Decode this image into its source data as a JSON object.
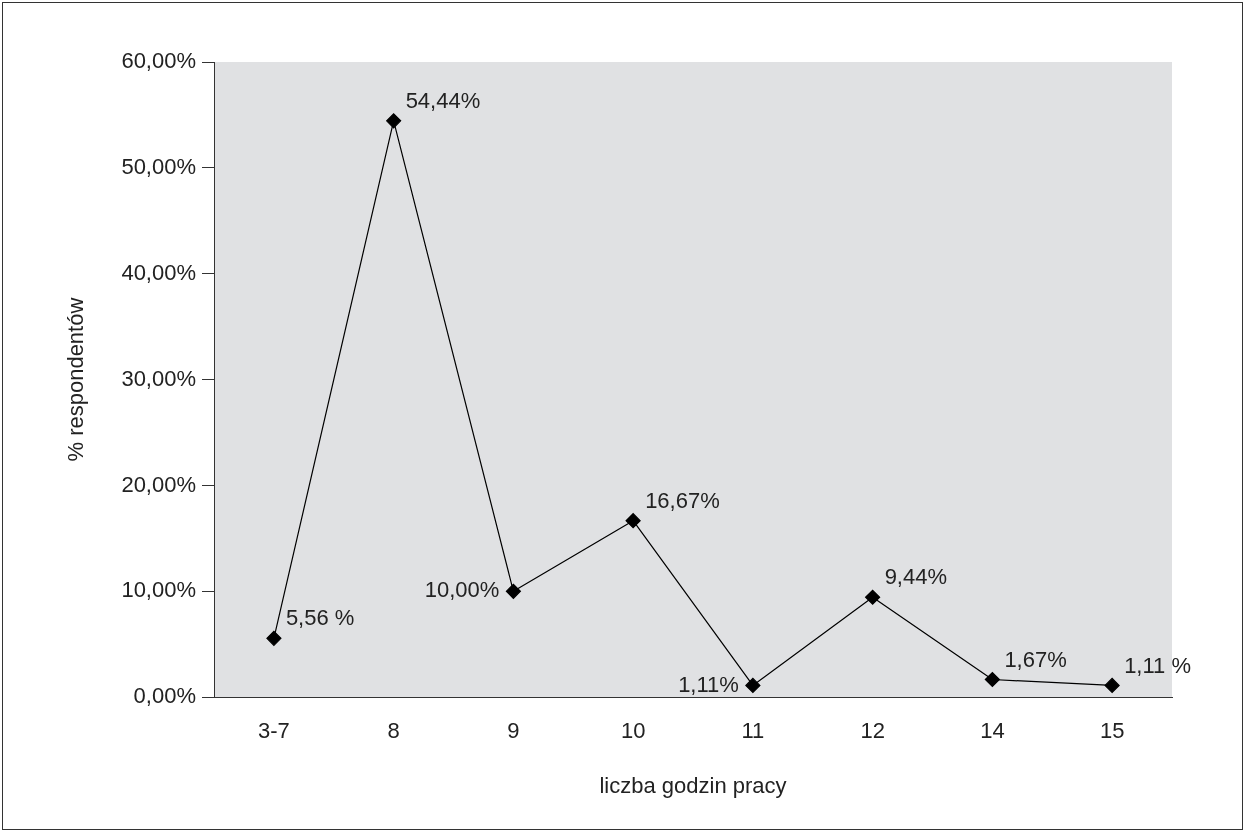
{
  "chart_data": {
    "type": "line",
    "xlabel": "liczba godzin pracy",
    "ylabel": "% respondentów",
    "categories": [
      "3-7",
      "8",
      "9",
      "10",
      "11",
      "12",
      "14",
      "15"
    ],
    "series": [
      {
        "color": "#000000",
        "values": [
          5.56,
          54.44,
          10,
          16.67,
          1.11,
          9.44,
          1.67,
          1.11
        ],
        "value_labels": [
          "5,56 %",
          "54,44%",
          "10,00%",
          "16,67%",
          "1,11%",
          "9,44%",
          "1,67%",
          "1,11 %"
        ]
      }
    ],
    "ylim": [
      0,
      60
    ],
    "yticks": [
      {
        "value": 0,
        "label": "0,00%"
      },
      {
        "value": 10,
        "label": "10,00%"
      },
      {
        "value": 20,
        "label": "20,00%"
      },
      {
        "value": 30,
        "label": "30,00%"
      },
      {
        "value": 40,
        "label": "40,00%"
      },
      {
        "value": 50,
        "label": "50,00%"
      },
      {
        "value": 60,
        "label": "60,00%"
      }
    ],
    "grid": false,
    "legend": false,
    "marker": "diamond",
    "line_style": "solid"
  }
}
